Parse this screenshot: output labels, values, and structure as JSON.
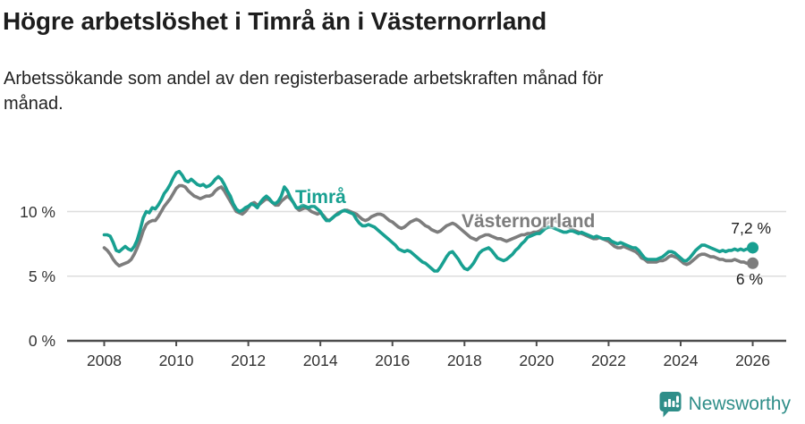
{
  "title": "Högre arbetslöshet i Timrå än i Västernorrland",
  "subtitle": {
    "lines": [
      "Arbetssökande som andel av den registerbaserade arbetskraften månad för",
      "månad."
    ]
  },
  "footer": {
    "brand": "Newsworthy"
  },
  "colors": {
    "title": "#1d1d1d",
    "text": "#333333",
    "grid": "#dddddd",
    "axis": "#4d4d4d",
    "timra": "#18a091",
    "vasternorrland": "#7d7d7d",
    "brand": "#2f8e89"
  },
  "chart_data": {
    "type": "line",
    "title": "Högre arbetslöshet i Timrå än i Västernorrland",
    "subtitle": "Arbetssökande som andel av den registerbaserade arbetskraften månad för månad.",
    "x_start": 2008.0,
    "x_step_years": 0.0833333,
    "x_ticks": [
      2008,
      2010,
      2012,
      2014,
      2016,
      2018,
      2020,
      2022,
      2024,
      2026
    ],
    "y_ticks": [
      {
        "label": "0 %",
        "value": 0
      },
      {
        "label": "5 %",
        "value": 5
      },
      {
        "label": "10 %",
        "value": 10
      }
    ],
    "ylim": [
      0,
      13.5
    ],
    "grid": true,
    "legend_position": "inline-labels",
    "series": [
      {
        "name": "Timrå",
        "color": "#18a091",
        "end_label": "7,2 %",
        "values": [
          8.2,
          8.2,
          8.1,
          7.6,
          7.0,
          6.9,
          7.1,
          7.3,
          7.1,
          7.0,
          7.3,
          7.8,
          8.6,
          9.5,
          10.0,
          9.9,
          10.3,
          10.2,
          10.5,
          10.9,
          11.4,
          11.7,
          12.1,
          12.6,
          13.0,
          13.1,
          12.8,
          12.4,
          12.3,
          12.5,
          12.3,
          12.1,
          12.0,
          12.1,
          11.9,
          12.0,
          12.2,
          12.5,
          12.7,
          12.5,
          12.1,
          11.6,
          11.2,
          10.6,
          10.2,
          10.0,
          10.1,
          10.3,
          10.4,
          10.6,
          10.5,
          10.3,
          10.7,
          11.0,
          11.2,
          11.0,
          10.7,
          10.6,
          10.8,
          11.2,
          11.9,
          11.6,
          11.1,
          10.7,
          10.3,
          10.3,
          10.5,
          10.4,
          10.3,
          10.4,
          10.4,
          10.2,
          10.0,
          9.6,
          9.3,
          9.3,
          9.5,
          9.7,
          9.8,
          10.0,
          10.1,
          10.0,
          9.9,
          9.8,
          9.4,
          9.1,
          8.9,
          8.9,
          9.0,
          8.9,
          8.8,
          8.6,
          8.4,
          8.2,
          8.0,
          7.8,
          7.6,
          7.4,
          7.1,
          7.0,
          6.9,
          7.0,
          6.9,
          6.7,
          6.5,
          6.3,
          6.1,
          6.0,
          5.8,
          5.6,
          5.4,
          5.4,
          5.7,
          6.1,
          6.5,
          6.8,
          6.9,
          6.6,
          6.3,
          5.9,
          5.6,
          5.5,
          5.7,
          6.0,
          6.4,
          6.8,
          7.0,
          7.1,
          7.2,
          7.0,
          6.7,
          6.4,
          6.3,
          6.2,
          6.3,
          6.5,
          6.7,
          7.0,
          7.2,
          7.5,
          7.7,
          8.0,
          8.1,
          8.2,
          8.3,
          8.3,
          8.5,
          8.7,
          8.8,
          8.8,
          8.7,
          8.6,
          8.5,
          8.4,
          8.4,
          8.5,
          8.5,
          8.4,
          8.3,
          8.4,
          8.3,
          8.2,
          8.1,
          8.0,
          8.1,
          8.0,
          7.9,
          7.9,
          7.9,
          7.7,
          7.6,
          7.5,
          7.6,
          7.5,
          7.4,
          7.3,
          7.2,
          7.2,
          7.0,
          6.7,
          6.4,
          6.3,
          6.3,
          6.3,
          6.3,
          6.4,
          6.5,
          6.7,
          6.9,
          6.9,
          6.8,
          6.6,
          6.4,
          6.2,
          6.2,
          6.4,
          6.7,
          7.0,
          7.2,
          7.4,
          7.4,
          7.3,
          7.2,
          7.1,
          7.0,
          6.9,
          7.0,
          6.9,
          7.0,
          7.0,
          7.1,
          7.0,
          7.1,
          7.0,
          7.1,
          7.1,
          7.2
        ]
      },
      {
        "name": "Västernorrland",
        "color": "#7d7d7d",
        "end_label": "6 %",
        "values": [
          7.2,
          7.0,
          6.7,
          6.3,
          6.0,
          5.8,
          5.9,
          6.0,
          6.1,
          6.3,
          6.7,
          7.2,
          7.8,
          8.5,
          9.0,
          9.2,
          9.3,
          9.3,
          9.6,
          10.0,
          10.4,
          10.7,
          11.0,
          11.4,
          11.8,
          12.0,
          12.0,
          11.9,
          11.6,
          11.4,
          11.2,
          11.1,
          11.0,
          11.1,
          11.2,
          11.2,
          11.3,
          11.6,
          11.8,
          11.9,
          11.6,
          11.2,
          10.8,
          10.4,
          10.0,
          9.9,
          9.8,
          10.0,
          10.3,
          10.6,
          10.7,
          10.5,
          10.6,
          10.8,
          11.0,
          10.9,
          10.7,
          10.5,
          10.5,
          10.8,
          11.0,
          11.2,
          11.0,
          10.7,
          10.3,
          10.1,
          10.2,
          10.3,
          10.2,
          10.0,
          9.9,
          9.8,
          9.9,
          9.7,
          9.4,
          9.3,
          9.5,
          9.7,
          9.9,
          10.0,
          10.1,
          10.1,
          10.0,
          9.9,
          9.8,
          9.6,
          9.4,
          9.3,
          9.4,
          9.6,
          9.7,
          9.8,
          9.8,
          9.7,
          9.5,
          9.3,
          9.2,
          9.0,
          8.8,
          8.7,
          8.8,
          9.0,
          9.2,
          9.3,
          9.4,
          9.3,
          9.1,
          8.9,
          8.8,
          8.6,
          8.5,
          8.4,
          8.5,
          8.7,
          8.9,
          9.0,
          9.1,
          9.0,
          8.8,
          8.6,
          8.4,
          8.2,
          8.0,
          7.9,
          7.8,
          8.0,
          8.1,
          8.2,
          8.2,
          8.1,
          8.0,
          7.9,
          7.9,
          7.8,
          7.7,
          7.8,
          7.9,
          8.0,
          8.1,
          8.2,
          8.2,
          8.3,
          8.3,
          8.4,
          8.4,
          8.5,
          8.7,
          9.0,
          9.2,
          9.3,
          9.3,
          9.2,
          9.1,
          9.0,
          8.9,
          8.8,
          8.6,
          8.5,
          8.4,
          8.3,
          8.2,
          8.1,
          8.0,
          7.9,
          7.9,
          8.0,
          7.9,
          7.8,
          7.7,
          7.5,
          7.3,
          7.2,
          7.2,
          7.3,
          7.2,
          7.1,
          7.0,
          6.9,
          6.7,
          6.4,
          6.3,
          6.1,
          6.1,
          6.1,
          6.1,
          6.2,
          6.2,
          6.3,
          6.5,
          6.6,
          6.5,
          6.4,
          6.2,
          6.0,
          5.9,
          6.0,
          6.2,
          6.4,
          6.6,
          6.7,
          6.7,
          6.6,
          6.5,
          6.5,
          6.4,
          6.3,
          6.3,
          6.2,
          6.2,
          6.2,
          6.3,
          6.2,
          6.1,
          6.1,
          6.0,
          6.0,
          6.0
        ]
      }
    ]
  }
}
